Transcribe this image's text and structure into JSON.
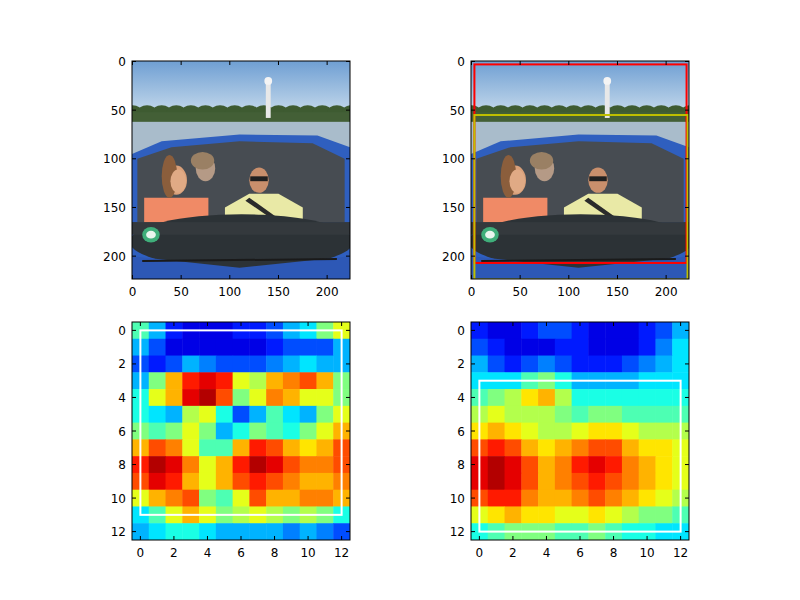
{
  "chart_data": [
    {
      "type": "image",
      "xlim": [
        -0.5,
        223.5
      ],
      "ylim": [
        223.5,
        -0.5
      ],
      "xticks": [
        0,
        50,
        100,
        150,
        200
      ],
      "yticks": [
        0,
        50,
        100,
        150,
        200
      ]
    },
    {
      "type": "image",
      "xlim": [
        -0.5,
        223.5
      ],
      "ylim": [
        223.5,
        -0.5
      ],
      "xticks": [
        0,
        50,
        100,
        150,
        200
      ],
      "yticks": [
        0,
        50,
        100,
        150,
        200
      ],
      "boxes": [
        {
          "color": "#ff0000",
          "x0": 3,
          "y0": 3,
          "x1": 221,
          "y1": 207
        },
        {
          "color": "#bfbf00",
          "x0": 3,
          "y0": 55,
          "x1": 222,
          "y1": 224
        }
      ]
    },
    {
      "type": "heatmap",
      "xlim": [
        -0.5,
        12.5
      ],
      "ylim": [
        12.5,
        -0.5
      ],
      "xticks": [
        0,
        2,
        4,
        6,
        8,
        10,
        12
      ],
      "yticks": [
        0,
        2,
        4,
        6,
        8,
        10,
        12
      ],
      "cells": [
        [
          0.45,
          0.3,
          0.15,
          0.1,
          0.1,
          0.1,
          0.15,
          0.15,
          0.2,
          0.3,
          0.35,
          0.5,
          0.6
        ],
        [
          0.3,
          0.2,
          0.1,
          0.1,
          0.1,
          0.1,
          0.1,
          0.1,
          0.15,
          0.2,
          0.2,
          0.2,
          0.3
        ],
        [
          0.2,
          0.15,
          0.2,
          0.3,
          0.25,
          0.2,
          0.2,
          0.2,
          0.25,
          0.3,
          0.35,
          0.3,
          0.3
        ],
        [
          0.3,
          0.5,
          0.7,
          0.85,
          0.9,
          0.85,
          0.6,
          0.55,
          0.7,
          0.75,
          0.8,
          0.7,
          0.5
        ],
        [
          0.4,
          0.6,
          0.7,
          0.9,
          0.95,
          0.8,
          0.5,
          0.6,
          0.75,
          0.7,
          0.6,
          0.6,
          0.5
        ],
        [
          0.4,
          0.35,
          0.3,
          0.55,
          0.6,
          0.4,
          0.2,
          0.3,
          0.45,
          0.35,
          0.3,
          0.5,
          0.6
        ],
        [
          0.5,
          0.45,
          0.5,
          0.6,
          0.5,
          0.3,
          0.4,
          0.5,
          0.45,
          0.4,
          0.5,
          0.6,
          0.7
        ],
        [
          0.7,
          0.8,
          0.75,
          0.6,
          0.45,
          0.45,
          0.7,
          0.85,
          0.8,
          0.7,
          0.65,
          0.7,
          0.8
        ],
        [
          0.85,
          0.95,
          0.9,
          0.75,
          0.6,
          0.7,
          0.85,
          0.95,
          0.9,
          0.8,
          0.75,
          0.75,
          0.8
        ],
        [
          0.8,
          0.9,
          0.85,
          0.7,
          0.6,
          0.7,
          0.8,
          0.85,
          0.8,
          0.75,
          0.7,
          0.7,
          0.75
        ],
        [
          0.6,
          0.7,
          0.75,
          0.8,
          0.5,
          0.45,
          0.6,
          0.8,
          0.7,
          0.7,
          0.75,
          0.75,
          0.7
        ],
        [
          0.35,
          0.45,
          0.6,
          0.7,
          0.6,
          0.5,
          0.55,
          0.6,
          0.55,
          0.5,
          0.55,
          0.5,
          0.4
        ],
        [
          0.3,
          0.35,
          0.4,
          0.4,
          0.35,
          0.3,
          0.3,
          0.3,
          0.3,
          0.25,
          0.3,
          0.25,
          0.2
        ]
      ],
      "boxes": [
        {
          "color": "#ffffff",
          "x0": 0,
          "y0": 0,
          "x1": 12,
          "y1": 11
        }
      ]
    },
    {
      "type": "heatmap",
      "xlim": [
        -0.5,
        12.5
      ],
      "ylim": [
        12.5,
        -0.5
      ],
      "xticks": [
        0,
        2,
        4,
        6,
        8,
        10,
        12
      ],
      "yticks": [
        0,
        2,
        4,
        6,
        8,
        10,
        12
      ],
      "cells": [
        [
          0.15,
          0.1,
          0.1,
          0.15,
          0.2,
          0.2,
          0.15,
          0.1,
          0.1,
          0.1,
          0.15,
          0.2,
          0.3
        ],
        [
          0.2,
          0.15,
          0.1,
          0.1,
          0.1,
          0.15,
          0.15,
          0.1,
          0.1,
          0.1,
          0.15,
          0.25,
          0.35
        ],
        [
          0.3,
          0.2,
          0.15,
          0.2,
          0.25,
          0.2,
          0.15,
          0.15,
          0.15,
          0.2,
          0.25,
          0.3,
          0.35
        ],
        [
          0.35,
          0.35,
          0.35,
          0.45,
          0.5,
          0.4,
          0.3,
          0.3,
          0.3,
          0.3,
          0.35,
          0.35,
          0.35
        ],
        [
          0.45,
          0.5,
          0.55,
          0.65,
          0.7,
          0.55,
          0.4,
          0.4,
          0.4,
          0.4,
          0.4,
          0.4,
          0.4
        ],
        [
          0.55,
          0.6,
          0.55,
          0.55,
          0.55,
          0.5,
          0.45,
          0.5,
          0.5,
          0.45,
          0.45,
          0.45,
          0.45
        ],
        [
          0.65,
          0.7,
          0.65,
          0.6,
          0.55,
          0.55,
          0.6,
          0.65,
          0.65,
          0.6,
          0.55,
          0.55,
          0.55
        ],
        [
          0.8,
          0.85,
          0.8,
          0.7,
          0.65,
          0.7,
          0.75,
          0.8,
          0.8,
          0.7,
          0.65,
          0.65,
          0.6
        ],
        [
          0.9,
          0.95,
          0.9,
          0.8,
          0.7,
          0.75,
          0.85,
          0.9,
          0.85,
          0.75,
          0.7,
          0.65,
          0.6
        ],
        [
          0.9,
          0.95,
          0.9,
          0.8,
          0.7,
          0.75,
          0.8,
          0.85,
          0.8,
          0.75,
          0.7,
          0.65,
          0.6
        ],
        [
          0.8,
          0.85,
          0.85,
          0.75,
          0.7,
          0.7,
          0.75,
          0.8,
          0.75,
          0.7,
          0.65,
          0.6,
          0.55
        ],
        [
          0.6,
          0.65,
          0.7,
          0.65,
          0.65,
          0.6,
          0.6,
          0.65,
          0.6,
          0.55,
          0.5,
          0.5,
          0.45
        ],
        [
          0.4,
          0.45,
          0.5,
          0.5,
          0.5,
          0.45,
          0.45,
          0.5,
          0.45,
          0.4,
          0.4,
          0.35,
          0.35
        ]
      ],
      "boxes": [
        {
          "color": "#ffffff",
          "x0": 0,
          "y0": 3,
          "x1": 12,
          "y1": 12
        }
      ]
    }
  ]
}
